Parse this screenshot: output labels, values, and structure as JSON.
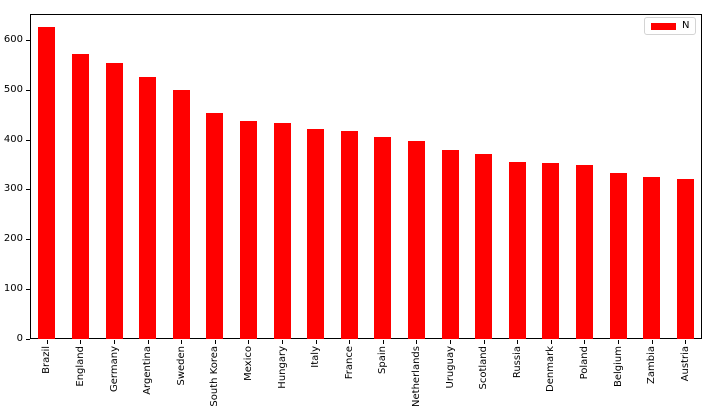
{
  "chart_data": {
    "type": "bar",
    "title": "",
    "xlabel": "",
    "ylabel": "",
    "categories": [
      "Brazil",
      "England",
      "Germany",
      "Argentina",
      "Sweden",
      "South Korea",
      "Mexico",
      "Hungary",
      "Italy",
      "France",
      "Spain",
      "Netherlands",
      "Uruguay",
      "Scotland",
      "Russia",
      "Denmark",
      "Poland",
      "Belgium",
      "Zambia",
      "Austria"
    ],
    "series": [
      {
        "name": "N",
        "values": [
          625,
          572,
          553,
          525,
          500,
          453,
          438,
          434,
          421,
          417,
          405,
          398,
          380,
          372,
          356,
          354,
          350,
          333,
          325,
          320
        ]
      }
    ],
    "bar_color": "#ff0000",
    "ylim": [
      0,
      650
    ],
    "yticks": [
      0,
      100,
      200,
      300,
      400,
      500,
      600
    ],
    "grid": false,
    "legend": {
      "label": "N",
      "position": "upper right"
    }
  }
}
